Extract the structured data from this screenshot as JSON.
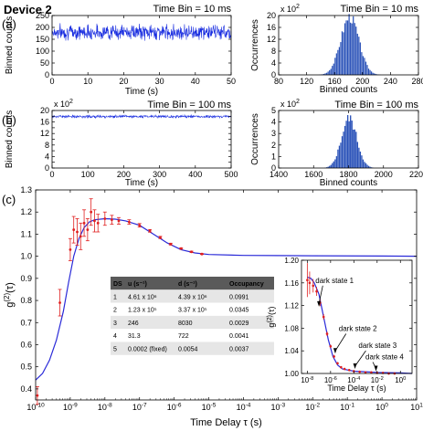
{
  "figure": {
    "device_label": "Device 2",
    "panel_labels": [
      "(a)",
      "(b)",
      "(c)"
    ],
    "axis_labels": {
      "binned_counts": "Binned counts",
      "time_s": "Time (s)",
      "occurrences": "Occurrences",
      "time_delay": "Time Delay τ (s)",
      "g2": "g(2)(τ)"
    },
    "multiplier": "x 10",
    "multiplier_exp": "2"
  },
  "colors": {
    "trace": "#1a2ee0",
    "hist": "#2a52b8",
    "model": "#2a2ad8",
    "data": "#e02020",
    "table_header": "#5a5a5a",
    "table_row": "#e6e6e6"
  },
  "chart_data": [
    {
      "id": "a_trace",
      "type": "line",
      "title": "Time Bin = 10 ms",
      "xlabel": "Time (s)",
      "ylabel": "Binned counts",
      "xlim": [
        0,
        50
      ],
      "ylim": [
        0,
        250
      ],
      "xticks": [
        0,
        10,
        20,
        30,
        40,
        50
      ],
      "yticks": [
        0,
        50,
        100,
        150,
        200,
        250
      ],
      "series": [
        {
          "mean": 180,
          "noise_amplitude": 30
        }
      ]
    },
    {
      "id": "a_hist",
      "type": "bar",
      "title": "Time Bin = 10 ms",
      "xlabel": "Binned counts",
      "ylabel": "Occurrences",
      "xlim": [
        80,
        280
      ],
      "ylim": [
        0,
        20
      ],
      "y_multiplier": "x 10^2",
      "xticks": [
        80,
        120,
        160,
        200,
        240,
        280
      ],
      "yticks": [
        0,
        4,
        8,
        12,
        16,
        20
      ],
      "distribution": {
        "center": 181,
        "sigma": 13,
        "peak": 19.5
      }
    },
    {
      "id": "b_trace",
      "type": "line",
      "title": "Time Bin = 100 ms",
      "xlabel": "Time (s)",
      "ylabel": "Binned counts",
      "xlim": [
        0,
        500
      ],
      "ylim": [
        0,
        20
      ],
      "y_multiplier": "x 10^2",
      "xticks": [
        0,
        100,
        200,
        300,
        400,
        500
      ],
      "yticks": [
        0,
        2,
        4,
        6,
        8,
        10,
        12,
        14,
        16,
        18,
        20
      ],
      "series": [
        {
          "mean": 17.9,
          "noise_amplitude": 0.6
        }
      ]
    },
    {
      "id": "b_hist",
      "type": "bar",
      "title": "Time Bin = 100 ms",
      "xlabel": "Binned counts",
      "ylabel": "Occurrences",
      "xlim": [
        1400,
        2200
      ],
      "ylim": [
        0,
        5
      ],
      "y_multiplier": "x 10^2",
      "xticks": [
        1400,
        1600,
        1800,
        2000,
        2200
      ],
      "yticks": [
        0,
        1,
        2,
        3,
        4,
        5
      ],
      "distribution": {
        "center": 1800,
        "sigma": 44,
        "peak": 4.3
      }
    },
    {
      "id": "c_main",
      "type": "line",
      "xscale": "log",
      "xlabel": "Time Delay τ (s)",
      "ylabel": "g(2)(τ)",
      "xlim_exp": [
        -10,
        1
      ],
      "ylim": [
        0.35,
        1.3
      ],
      "yticks": [
        0.4,
        0.5,
        0.6,
        0.7,
        0.8,
        0.9,
        1.0,
        1.1,
        1.2,
        1.3
      ],
      "xticks": [
        "10-10",
        "10-9",
        "10-8",
        "10-7",
        "10-6",
        "10-5",
        "10-4",
        "10-3",
        "10-2",
        "10-1",
        "100",
        "101"
      ],
      "model_curve_log": [
        [
          -10,
          0.44
        ],
        [
          -9.8,
          0.47
        ],
        [
          -9.6,
          0.53
        ],
        [
          -9.4,
          0.62
        ],
        [
          -9.2,
          0.75
        ],
        [
          -9.05,
          0.88
        ],
        [
          -8.9,
          1.0
        ],
        [
          -8.75,
          1.08
        ],
        [
          -8.6,
          1.13
        ],
        [
          -8.45,
          1.155
        ],
        [
          -8.3,
          1.165
        ],
        [
          -8.0,
          1.17
        ],
        [
          -7.7,
          1.168
        ],
        [
          -7.4,
          1.16
        ],
        [
          -7.0,
          1.14
        ],
        [
          -6.6,
          1.1
        ],
        [
          -6.2,
          1.06
        ],
        [
          -5.8,
          1.03
        ],
        [
          -5.4,
          1.015
        ],
        [
          -5.0,
          1.008
        ],
        [
          -4.0,
          1.004
        ],
        [
          -3.0,
          1.003
        ],
        [
          -2.0,
          1.002
        ],
        [
          0.0,
          1.001
        ],
        [
          1.0,
          1.0
        ]
      ],
      "data_points": [
        {
          "logx": -9.95,
          "y": 0.37,
          "err": 0.04
        },
        {
          "logx": -9.3,
          "y": 0.79,
          "err": 0.06
        },
        {
          "logx": -9.0,
          "y": 1.03,
          "err": 0.05
        },
        {
          "logx": -8.9,
          "y": 1.12,
          "err": 0.06
        },
        {
          "logx": -8.8,
          "y": 1.11,
          "err": 0.06
        },
        {
          "logx": -8.7,
          "y": 1.09,
          "err": 0.06
        },
        {
          "logx": -8.6,
          "y": 1.15,
          "err": 0.06
        },
        {
          "logx": -8.5,
          "y": 1.12,
          "err": 0.05
        },
        {
          "logx": -8.4,
          "y": 1.2,
          "err": 0.06
        },
        {
          "logx": -8.3,
          "y": 1.16,
          "err": 0.05
        },
        {
          "logx": -8.2,
          "y": 1.15,
          "err": 0.04
        },
        {
          "logx": -8.0,
          "y": 1.17,
          "err": 0.03
        },
        {
          "logx": -7.8,
          "y": 1.165,
          "err": 0.02
        },
        {
          "logx": -7.6,
          "y": 1.16,
          "err": 0.015
        },
        {
          "logx": -7.3,
          "y": 1.155,
          "err": 0.01
        },
        {
          "logx": -7.0,
          "y": 1.14,
          "err": 0.008
        },
        {
          "logx": -6.7,
          "y": 1.115,
          "err": 0.006
        },
        {
          "logx": -6.4,
          "y": 1.085,
          "err": 0.005
        },
        {
          "logx": -6.1,
          "y": 1.055,
          "err": 0.004
        },
        {
          "logx": -5.8,
          "y": 1.035,
          "err": 0.003
        },
        {
          "logx": -5.5,
          "y": 1.02,
          "err": 0.003
        },
        {
          "logx": -5.2,
          "y": 1.01,
          "err": 0.002
        }
      ],
      "table": {
        "headers": [
          "DS",
          "u (s⁻¹)",
          "d (s⁻¹)",
          "Occupancy"
        ],
        "rows": [
          [
            "1",
            "4.61 x 10⁶",
            "4.39 x 10⁶",
            "0.0991"
          ],
          [
            "2",
            "1.23 x 10⁵",
            "3.37 x 10⁵",
            "0.0345"
          ],
          [
            "3",
            "246",
            "8030",
            "0.0029"
          ],
          [
            "4",
            "31.3",
            "722",
            "0.0041"
          ],
          [
            "5",
            "0.0002 (fixed)",
            "0.0054",
            "0.0037"
          ]
        ]
      }
    },
    {
      "id": "c_inset",
      "type": "line",
      "xscale": "log",
      "xlabel": "Time Delay τ (s)",
      "ylabel": "g(2)(τ)",
      "xlim_exp": [
        -8.5,
        1
      ],
      "ylim": [
        1.0,
        1.2
      ],
      "yticks": [
        1.0,
        1.04,
        1.08,
        1.12,
        1.16,
        1.2
      ],
      "xticks": [
        "10-8",
        "10-6",
        "10-4",
        "10-2",
        "100"
      ],
      "annotations": [
        "dark state 1",
        "dark state 2",
        "dark state 3",
        "dark state 4"
      ],
      "data_points": [
        {
          "logx": -8.0,
          "y": 1.165,
          "err": 0.03
        },
        {
          "logx": -7.8,
          "y": 1.16,
          "err": 0.02
        },
        {
          "logx": -7.5,
          "y": 1.155,
          "err": 0.012
        },
        {
          "logx": -7.2,
          "y": 1.145,
          "err": 0.008
        },
        {
          "logx": -6.9,
          "y": 1.125,
          "err": 0.006
        },
        {
          "logx": -6.6,
          "y": 1.1,
          "err": 0.005
        },
        {
          "logx": -6.3,
          "y": 1.07,
          "err": 0.004
        },
        {
          "logx": -6.0,
          "y": 1.048,
          "err": 0.003
        },
        {
          "logx": -5.7,
          "y": 1.03,
          "err": 0.003
        },
        {
          "logx": -5.4,
          "y": 1.018,
          "err": 0.002
        },
        {
          "logx": -5.1,
          "y": 1.011,
          "err": 0.002
        },
        {
          "logx": -4.8,
          "y": 1.008,
          "err": 0.002
        },
        {
          "logx": -4.4,
          "y": 1.006,
          "err": 0.002
        },
        {
          "logx": -4.0,
          "y": 1.004,
          "err": 0.002
        },
        {
          "logx": -3.5,
          "y": 1.003,
          "err": 0.002
        },
        {
          "logx": -3.0,
          "y": 1.002,
          "err": 0.002
        },
        {
          "logx": -2.5,
          "y": 1.002,
          "err": 0.002
        },
        {
          "logx": -2.0,
          "y": 1.001,
          "err": 0.002
        },
        {
          "logx": -1.5,
          "y": 1.001,
          "err": 0.002
        },
        {
          "logx": -1.0,
          "y": 1.0,
          "err": 0.002
        },
        {
          "logx": -0.5,
          "y": 1.0,
          "err": 0.002
        }
      ]
    }
  ]
}
